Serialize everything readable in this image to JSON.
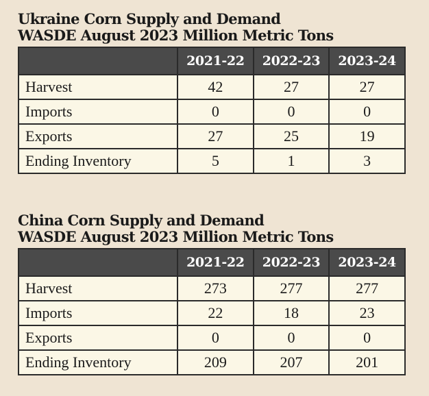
{
  "tables": [
    {
      "title_line1": "Ukraine Corn Supply and Demand",
      "title_line2": "WASDE August 2023 Million Metric Tons",
      "columns": [
        "2021-22",
        "2022-23",
        "2023-24"
      ],
      "rows": [
        {
          "label": "Harvest",
          "values": [
            "42",
            "27",
            "27"
          ]
        },
        {
          "label": "Imports",
          "values": [
            "0",
            "0",
            "0"
          ]
        },
        {
          "label": "Exports",
          "values": [
            "27",
            "25",
            "19"
          ]
        },
        {
          "label": "Ending Inventory",
          "values": [
            "5",
            "1",
            "3"
          ]
        }
      ]
    },
    {
      "title_line1": "China Corn Supply and Demand",
      "title_line2": "WASDE August 2023 Million Metric Tons",
      "columns": [
        "2021-22",
        "2022-23",
        "2023-24"
      ],
      "rows": [
        {
          "label": "Harvest",
          "values": [
            "273",
            "277",
            "277"
          ]
        },
        {
          "label": "Imports",
          "values": [
            "22",
            "18",
            "23"
          ]
        },
        {
          "label": "Exports",
          "values": [
            "0",
            "0",
            "0"
          ]
        },
        {
          "label": "Ending Inventory",
          "values": [
            "209",
            "207",
            "201"
          ]
        }
      ]
    }
  ],
  "chart_data": [
    {
      "type": "table",
      "title": "Ukraine Corn Supply and Demand WASDE August 2023 Million Metric Tons",
      "columns": [
        "2021-22",
        "2022-23",
        "2023-24"
      ],
      "rows": [
        "Harvest",
        "Imports",
        "Exports",
        "Ending Inventory"
      ],
      "values": [
        [
          42,
          27,
          27
        ],
        [
          0,
          0,
          0
        ],
        [
          27,
          25,
          19
        ],
        [
          5,
          1,
          3
        ]
      ]
    },
    {
      "type": "table",
      "title": "China Corn Supply and Demand WASDE August 2023 Million Metric Tons",
      "columns": [
        "2021-22",
        "2022-23",
        "2023-24"
      ],
      "rows": [
        "Harvest",
        "Imports",
        "Exports",
        "Ending Inventory"
      ],
      "values": [
        [
          273,
          277,
          277
        ],
        [
          22,
          18,
          23
        ],
        [
          0,
          0,
          0
        ],
        [
          209,
          207,
          201
        ]
      ]
    }
  ],
  "colors": {
    "background": "#efe4d3",
    "header_fill": "#4a4a4a",
    "cell_fill": "#fbf7e6",
    "border": "#2a2a2a"
  }
}
